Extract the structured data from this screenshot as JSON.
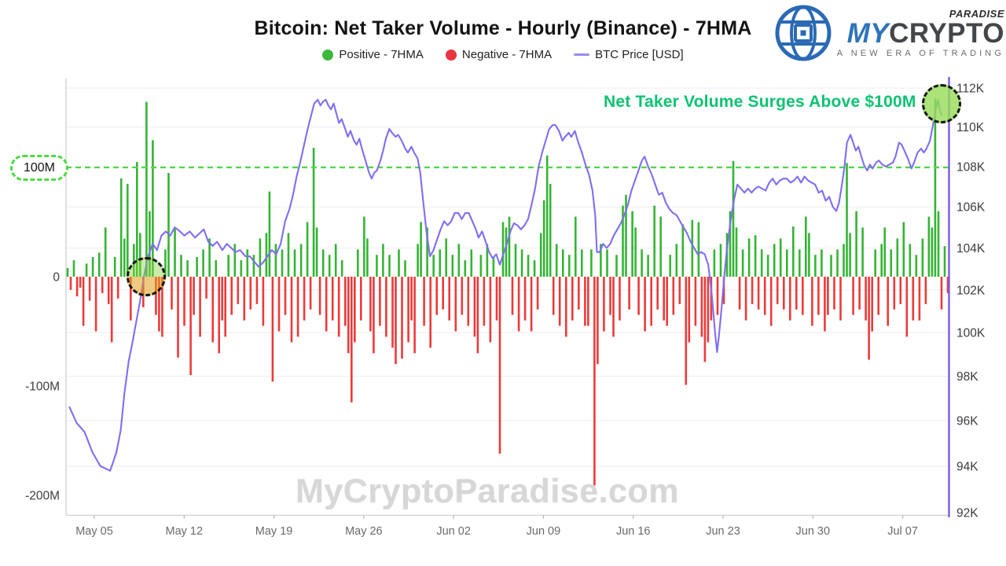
{
  "header": {
    "title": "Bitcoin: Net Taker Volume - Hourly (Binance) - 7HMA",
    "legend": [
      {
        "label": "Positive - 7HMA",
        "color": "#3cb93c",
        "marker": "dot"
      },
      {
        "label": "Negative - 7HMA",
        "color": "#e8353f",
        "marker": "dot"
      },
      {
        "label": "BTC Price [USD]",
        "color": "#9a8bf3",
        "marker": "line"
      }
    ]
  },
  "logo": {
    "paradise": "PARADISE",
    "my": "MY",
    "crypto": "CRYPTO",
    "tagline": "A NEW ERA OF TRADING"
  },
  "annotations": {
    "surge_text": "Net Taker Volume Surges Above $100M",
    "surge_color": "#0cc372",
    "watermark": "MyCryptoParadise.com"
  },
  "chart_data": {
    "type": "bar+line combo, hourly net taker volume (7HMA) with BTC price overlay (log-scaled right axis)",
    "left_axis": {
      "labels": [
        "100M",
        "0",
        "-100M",
        "-200M"
      ],
      "values_m": [
        100,
        0,
        -100,
        -200
      ]
    },
    "right_axis": {
      "labels": [
        "112K",
        "110K",
        "108K",
        "106K",
        "104K",
        "102K",
        "100K",
        "98K",
        "96K",
        "94K",
        "92K"
      ],
      "values_k": [
        112,
        110,
        108,
        106,
        104,
        102,
        100,
        98,
        96,
        94,
        92
      ]
    },
    "x_axis": {
      "ticks": [
        "May 05",
        "May 12",
        "May 19",
        "May 26",
        "Jun 02",
        "Jun 09",
        "Jun 16",
        "Jun 23",
        "Jun 30",
        "Jul 07"
      ]
    },
    "threshold_m": 100,
    "colors": {
      "positive": "#35b435",
      "negative": "#ec3a3a",
      "price": "#7f6ef2",
      "threshold": "#4fd848",
      "right_axis_line": "#7a5bdf",
      "grid": "#f5eef2",
      "axis": "#cfcfcf"
    },
    "bars_m": [
      8,
      -12,
      15,
      -18,
      -10,
      -45,
      12,
      -22,
      18,
      -50,
      22,
      -15,
      45,
      -25,
      -60,
      18,
      -20,
      90,
      35,
      85,
      -40,
      30,
      105,
      40,
      -28,
      160,
      60,
      125,
      -35,
      -50,
      -55,
      25,
      95,
      -30,
      45,
      -74,
      20,
      -45,
      15,
      -90,
      -35,
      18,
      -55,
      25,
      -20,
      35,
      -60,
      15,
      -70,
      -40,
      -55,
      20,
      -35,
      30,
      -25,
      15,
      -40,
      25,
      -30,
      20,
      -25,
      35,
      -45,
      40,
      78,
      -96,
      30,
      -50,
      25,
      -35,
      40,
      -60,
      25,
      -55,
      30,
      -40,
      50,
      -30,
      118,
      45,
      -35,
      25,
      -50,
      20,
      -40,
      30,
      -55,
      15,
      -45,
      -70,
      -115,
      -60,
      25,
      -40,
      55,
      35,
      -50,
      -70,
      20,
      -45,
      30,
      -55,
      20,
      -65,
      -80,
      25,
      -75,
      15,
      -60,
      -40,
      -70,
      30,
      50,
      -45,
      45,
      -65,
      20,
      -35,
      25,
      -30,
      35,
      -40,
      20,
      -50,
      30,
      -35,
      15,
      -45,
      25,
      -55,
      -70,
      20,
      -45,
      30,
      -60,
      18,
      -40,
      -162,
      50,
      45,
      55,
      -35,
      30,
      -50,
      25,
      -40,
      20,
      -50,
      15,
      -30,
      40,
      70,
      111,
      85,
      -35,
      30,
      -45,
      25,
      -55,
      20,
      -40,
      55,
      -30,
      25,
      -45,
      -45,
      25,
      -191,
      -80,
      30,
      -50,
      25,
      -35,
      -55,
      20,
      -40,
      65,
      75,
      -30,
      60,
      45,
      -35,
      25,
      -50,
      20,
      -45,
      65,
      -30,
      55,
      -40,
      -45,
      20,
      -35,
      30,
      -25,
      48,
      -99,
      -60,
      52,
      -45,
      50,
      -55,
      -78,
      -60,
      -40,
      25,
      -35,
      30,
      -25,
      40,
      60,
      106,
      45,
      -30,
      25,
      -40,
      35,
      -25,
      38,
      -30,
      25,
      -35,
      20,
      -45,
      30,
      -25,
      35,
      -30,
      25,
      -40,
      46,
      -30,
      25,
      -35,
      55,
      40,
      -45,
      20,
      -35,
      25,
      -50,
      -35,
      20,
      -30,
      25,
      -40,
      30,
      104,
      40,
      -35,
      60,
      -30,
      45,
      -40,
      -76,
      -50,
      25,
      -35,
      30,
      45,
      -45,
      25,
      -30,
      35,
      -25,
      50,
      -55,
      30,
      -40,
      20,
      -40,
      35,
      -25,
      55,
      45,
      163,
      60,
      -30,
      28,
      -15
    ],
    "price_k": [
      [
        0.004,
        96.6
      ],
      [
        0.012,
        95.9
      ],
      [
        0.021,
        95.5
      ],
      [
        0.03,
        94.6
      ],
      [
        0.039,
        94.0
      ],
      [
        0.05,
        93.8
      ],
      [
        0.057,
        94.6
      ],
      [
        0.062,
        95.6
      ],
      [
        0.066,
        97.2
      ],
      [
        0.071,
        98.7
      ],
      [
        0.075,
        99.5
      ],
      [
        0.079,
        100.4
      ],
      [
        0.084,
        101.5
      ],
      [
        0.088,
        102.6
      ],
      [
        0.093,
        103.6
      ],
      [
        0.098,
        104.2
      ],
      [
        0.103,
        103.9
      ],
      [
        0.108,
        104.6
      ],
      [
        0.113,
        104.8
      ],
      [
        0.118,
        104.6
      ],
      [
        0.123,
        105.0
      ],
      [
        0.129,
        104.8
      ],
      [
        0.134,
        104.6
      ],
      [
        0.14,
        104.8
      ],
      [
        0.146,
        104.5
      ],
      [
        0.151,
        104.7
      ],
      [
        0.156,
        104.9
      ],
      [
        0.161,
        104.3
      ],
      [
        0.166,
        104.1
      ],
      [
        0.171,
        104.3
      ],
      [
        0.177,
        103.9
      ],
      [
        0.182,
        104.2
      ],
      [
        0.187,
        104.0
      ],
      [
        0.192,
        103.8
      ],
      [
        0.197,
        103.9
      ],
      [
        0.203,
        103.6
      ],
      [
        0.208,
        103.6
      ],
      [
        0.214,
        103.3
      ],
      [
        0.218,
        103.1
      ],
      [
        0.223,
        103.3
      ],
      [
        0.228,
        103.6
      ],
      [
        0.233,
        103.9
      ],
      [
        0.238,
        103.7
      ],
      [
        0.243,
        104.2
      ],
      [
        0.248,
        105.3
      ],
      [
        0.253,
        105.9
      ],
      [
        0.257,
        106.6
      ],
      [
        0.261,
        107.5
      ],
      [
        0.265,
        108.2
      ],
      [
        0.269,
        109.0
      ],
      [
        0.273,
        109.8
      ],
      [
        0.277,
        110.5
      ],
      [
        0.281,
        111.2
      ],
      [
        0.285,
        111.4
      ],
      [
        0.288,
        111.1
      ],
      [
        0.291,
        111.3
      ],
      [
        0.294,
        111.4
      ],
      [
        0.297,
        111.1
      ],
      [
        0.3,
        110.9
      ],
      [
        0.303,
        111.2
      ],
      [
        0.306,
        110.7
      ],
      [
        0.309,
        110.2
      ],
      [
        0.312,
        110.4
      ],
      [
        0.316,
        109.9
      ],
      [
        0.319,
        109.5
      ],
      [
        0.322,
        109.8
      ],
      [
        0.326,
        109.3
      ],
      [
        0.329,
        109.1
      ],
      [
        0.332,
        109.4
      ],
      [
        0.335,
        108.9
      ],
      [
        0.339,
        108.3
      ],
      [
        0.343,
        107.7
      ],
      [
        0.346,
        107.4
      ],
      [
        0.349,
        107.7
      ],
      [
        0.352,
        107.8
      ],
      [
        0.356,
        108.3
      ],
      [
        0.359,
        108.8
      ],
      [
        0.362,
        109.4
      ],
      [
        0.366,
        109.9
      ],
      [
        0.369,
        109.7
      ],
      [
        0.373,
        109.5
      ],
      [
        0.376,
        109.6
      ],
      [
        0.38,
        109.3
      ],
      [
        0.384,
        108.9
      ],
      [
        0.387,
        108.7
      ],
      [
        0.391,
        109.0
      ],
      [
        0.394,
        108.7
      ],
      [
        0.398,
        108.4
      ],
      [
        0.401,
        107.7
      ],
      [
        0.404,
        106.4
      ],
      [
        0.408,
        104.8
      ],
      [
        0.412,
        103.6
      ],
      [
        0.416,
        103.9
      ],
      [
        0.42,
        104.4
      ],
      [
        0.424,
        104.9
      ],
      [
        0.428,
        105.3
      ],
      [
        0.432,
        105.1
      ],
      [
        0.436,
        105.3
      ],
      [
        0.44,
        105.7
      ],
      [
        0.444,
        105.7
      ],
      [
        0.448,
        105.4
      ],
      [
        0.452,
        105.7
      ],
      [
        0.456,
        105.7
      ],
      [
        0.46,
        105.3
      ],
      [
        0.464,
        104.9
      ],
      [
        0.467,
        104.5
      ],
      [
        0.471,
        104.8
      ],
      [
        0.475,
        104.3
      ],
      [
        0.479,
        103.8
      ],
      [
        0.483,
        103.5
      ],
      [
        0.487,
        103.7
      ],
      [
        0.491,
        103.2
      ],
      [
        0.495,
        103.7
      ],
      [
        0.499,
        104.2
      ],
      [
        0.503,
        104.8
      ],
      [
        0.507,
        105.2
      ],
      [
        0.511,
        105.1
      ],
      [
        0.515,
        104.9
      ],
      [
        0.519,
        105.1
      ],
      [
        0.523,
        105.4
      ],
      [
        0.527,
        106.1
      ],
      [
        0.531,
        106.9
      ],
      [
        0.535,
        108.0
      ],
      [
        0.539,
        108.7
      ],
      [
        0.543,
        109.3
      ],
      [
        0.547,
        109.9
      ],
      [
        0.551,
        110.1
      ],
      [
        0.554,
        110.1
      ],
      [
        0.558,
        109.8
      ],
      [
        0.562,
        109.3
      ],
      [
        0.565,
        109.5
      ],
      [
        0.569,
        109.7
      ],
      [
        0.572,
        109.5
      ],
      [
        0.576,
        109.8
      ],
      [
        0.58,
        109.2
      ],
      [
        0.584,
        108.7
      ],
      [
        0.588,
        108.1
      ],
      [
        0.592,
        107.6
      ],
      [
        0.596,
        106.8
      ],
      [
        0.599,
        105.6
      ],
      [
        0.601,
        103.8
      ],
      [
        0.604,
        103.8
      ],
      [
        0.608,
        104.2
      ],
      [
        0.612,
        104.0
      ],
      [
        0.616,
        104.2
      ],
      [
        0.62,
        104.6
      ],
      [
        0.624,
        104.9
      ],
      [
        0.628,
        105.2
      ],
      [
        0.632,
        105.6
      ],
      [
        0.636,
        106.1
      ],
      [
        0.64,
        106.8
      ],
      [
        0.644,
        107.3
      ],
      [
        0.648,
        107.8
      ],
      [
        0.652,
        108.3
      ],
      [
        0.655,
        108.5
      ],
      [
        0.659,
        108.0
      ],
      [
        0.663,
        107.6
      ],
      [
        0.667,
        107.1
      ],
      [
        0.671,
        106.6
      ],
      [
        0.675,
        106.7
      ],
      [
        0.679,
        106.2
      ],
      [
        0.683,
        105.9
      ],
      [
        0.687,
        105.7
      ],
      [
        0.691,
        105.6
      ],
      [
        0.695,
        105.3
      ],
      [
        0.699,
        105.0
      ],
      [
        0.703,
        104.7
      ],
      [
        0.707,
        104.3
      ],
      [
        0.711,
        104.0
      ],
      [
        0.715,
        103.7
      ],
      [
        0.719,
        103.8
      ],
      [
        0.723,
        103.7
      ],
      [
        0.727,
        103.2
      ],
      [
        0.731,
        101.8
      ],
      [
        0.735,
        99.9
      ],
      [
        0.737,
        99.1
      ],
      [
        0.739,
        99.8
      ],
      [
        0.742,
        101.1
      ],
      [
        0.745,
        102.6
      ],
      [
        0.748,
        103.9
      ],
      [
        0.752,
        105.2
      ],
      [
        0.756,
        106.3
      ],
      [
        0.76,
        107.1
      ],
      [
        0.764,
        106.9
      ],
      [
        0.768,
        106.7
      ],
      [
        0.772,
        106.9
      ],
      [
        0.776,
        106.7
      ],
      [
        0.78,
        106.9
      ],
      [
        0.784,
        107.0
      ],
      [
        0.788,
        106.9
      ],
      [
        0.792,
        106.8
      ],
      [
        0.796,
        107.2
      ],
      [
        0.8,
        107.4
      ],
      [
        0.804,
        107.1
      ],
      [
        0.808,
        107.3
      ],
      [
        0.812,
        107.4
      ],
      [
        0.816,
        107.4
      ],
      [
        0.82,
        107.2
      ],
      [
        0.824,
        107.3
      ],
      [
        0.828,
        107.5
      ],
      [
        0.832,
        107.2
      ],
      [
        0.836,
        107.5
      ],
      [
        0.84,
        107.3
      ],
      [
        0.844,
        107.2
      ],
      [
        0.848,
        107.1
      ],
      [
        0.852,
        106.7
      ],
      [
        0.856,
        106.8
      ],
      [
        0.86,
        106.3
      ],
      [
        0.864,
        106.5
      ],
      [
        0.868,
        106.0
      ],
      [
        0.872,
        105.8
      ],
      [
        0.875,
        106.2
      ],
      [
        0.878,
        107.0
      ],
      [
        0.881,
        107.9
      ],
      [
        0.884,
        109.2
      ],
      [
        0.888,
        109.6
      ],
      [
        0.891,
        109.2
      ],
      [
        0.894,
        108.8
      ],
      [
        0.897,
        109.0
      ],
      [
        0.901,
        108.4
      ],
      [
        0.904,
        108.0
      ],
      [
        0.907,
        107.8
      ],
      [
        0.91,
        108.1
      ],
      [
        0.913,
        107.9
      ],
      [
        0.917,
        108.2
      ],
      [
        0.92,
        108.3
      ],
      [
        0.924,
        108.1
      ],
      [
        0.928,
        108.0
      ],
      [
        0.932,
        108.1
      ],
      [
        0.936,
        108.2
      ],
      [
        0.939,
        108.5
      ],
      [
        0.943,
        109.2
      ],
      [
        0.946,
        109.1
      ],
      [
        0.95,
        108.7
      ],
      [
        0.953,
        108.4
      ],
      [
        0.957,
        107.9
      ],
      [
        0.96,
        108.2
      ],
      [
        0.964,
        108.7
      ],
      [
        0.968,
        108.9
      ],
      [
        0.971,
        108.7
      ],
      [
        0.974,
        108.9
      ],
      [
        0.978,
        109.3
      ],
      [
        0.981,
        110.0
      ],
      [
        0.984,
        110.8
      ],
      [
        0.987,
        111.4
      ],
      [
        0.989,
        110.9
      ],
      [
        0.991,
        110.6
      ]
    ]
  }
}
